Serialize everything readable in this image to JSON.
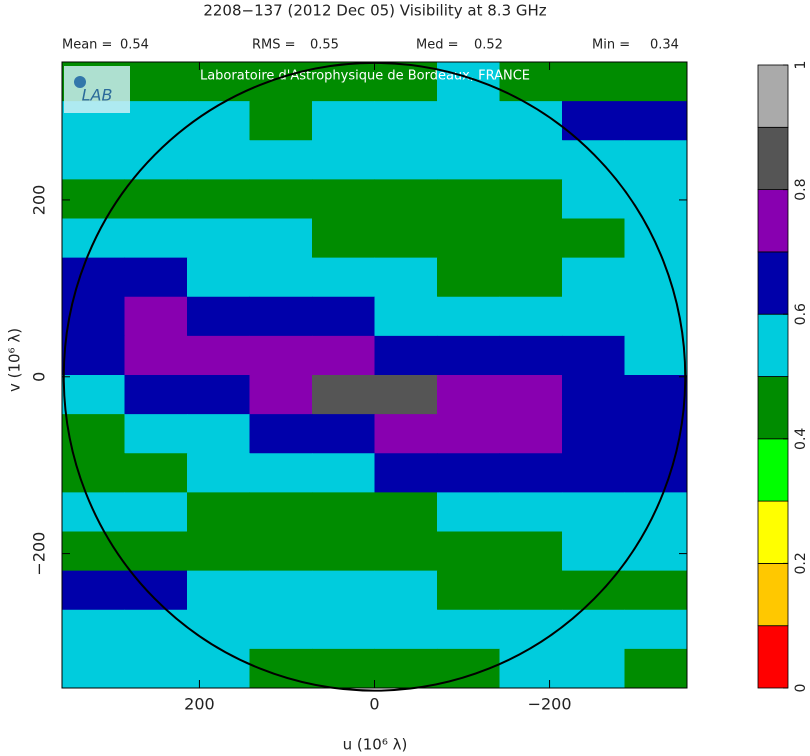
{
  "chart_data": {
    "type": "heatmap",
    "title": "2208−137  (2012 Dec 05)   Visibility at  8.3 GHz",
    "stats": [
      {
        "label": "Mean =",
        "value": 0.54
      },
      {
        "label": "RMS =",
        "value": 0.55
      },
      {
        "label": "Med =",
        "value": 0.52
      },
      {
        "label": "Min =",
        "value": 0.34
      }
    ],
    "watermark": "Laboratoire d'Astrophysique de Bordeaux, FRANCE",
    "logo": "LAB",
    "x_label": "u  (10⁶ λ)",
    "y_label": "v  (10⁶ λ)",
    "xlim": [
      357,
      -357
    ],
    "ylim": [
      -352,
      356
    ],
    "xticks": [
      200,
      0,
      {
        "value": -200,
        "label": "−200"
      }
    ],
    "yticks": [
      {
        "value": -200,
        "label": "−200"
      },
      0,
      200
    ],
    "circle_radius": 355,
    "z": [
      [
        0.45,
        0.45,
        0.45,
        0.45,
        0.45,
        0.45,
        0.55,
        0.45,
        0.45,
        0.45
      ],
      [
        0.55,
        0.55,
        0.55,
        0.45,
        0.55,
        0.55,
        0.55,
        0.55,
        0.65,
        0.65
      ],
      [
        0.55,
        0.55,
        0.55,
        0.55,
        0.55,
        0.55,
        0.55,
        0.55,
        0.55,
        0.55
      ],
      [
        0.45,
        0.45,
        0.45,
        0.45,
        0.45,
        0.45,
        0.45,
        0.45,
        0.55,
        0.55
      ],
      [
        0.55,
        0.55,
        0.55,
        0.55,
        0.45,
        0.45,
        0.45,
        0.45,
        0.45,
        0.55
      ],
      [
        0.65,
        0.65,
        0.55,
        0.55,
        0.55,
        0.55,
        0.45,
        0.45,
        0.55,
        0.55
      ],
      [
        0.65,
        0.72,
        0.65,
        0.65,
        0.65,
        0.55,
        0.55,
        0.55,
        0.55,
        0.55
      ],
      [
        0.65,
        0.72,
        0.75,
        0.75,
        0.72,
        0.65,
        0.65,
        0.65,
        0.65,
        0.55
      ],
      [
        0.55,
        0.65,
        0.65,
        0.72,
        0.85,
        0.85,
        0.75,
        0.72,
        0.65,
        0.65
      ],
      [
        0.45,
        0.55,
        0.55,
        0.65,
        0.65,
        0.72,
        0.72,
        0.72,
        0.65,
        0.65
      ],
      [
        0.45,
        0.45,
        0.55,
        0.55,
        0.55,
        0.65,
        0.65,
        0.65,
        0.65,
        0.65
      ],
      [
        0.55,
        0.55,
        0.45,
        0.45,
        0.45,
        0.45,
        0.55,
        0.55,
        0.55,
        0.55
      ],
      [
        0.45,
        0.45,
        0.45,
        0.45,
        0.45,
        0.45,
        0.45,
        0.45,
        0.55,
        0.55
      ],
      [
        0.65,
        0.65,
        0.55,
        0.55,
        0.55,
        0.55,
        0.45,
        0.45,
        0.45,
        0.45
      ],
      [
        0.55,
        0.55,
        0.55,
        0.55,
        0.55,
        0.55,
        0.55,
        0.55,
        0.55,
        0.55
      ],
      [
        0.55,
        0.55,
        0.55,
        0.45,
        0.45,
        0.45,
        0.45,
        0.55,
        0.55,
        0.45
      ]
    ],
    "colorbar": {
      "levels": [
        0,
        0.1,
        0.2,
        0.3,
        0.4,
        0.5,
        0.6,
        0.7,
        0.8,
        0.9,
        1
      ],
      "colors": [
        "#ff0000",
        "#ffc800",
        "#ffff00",
        "#00ff00",
        "#008c00",
        "#00ccdd",
        "#0000aa",
        "#8800b0",
        "#555555",
        "#aaaaaa"
      ],
      "ticks": [
        0,
        0.2,
        0.4,
        0.6,
        0.8,
        1
      ]
    }
  }
}
